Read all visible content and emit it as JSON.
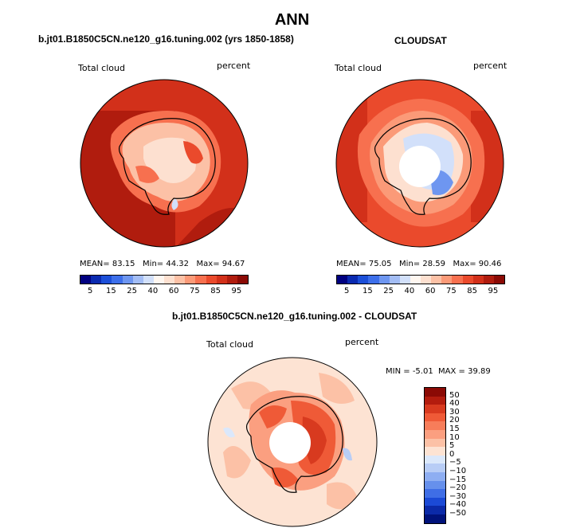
{
  "page_title": "ANN",
  "panels": [
    {
      "title": "b.jt01.B1850C5CN.ne120_g16.tuning.002 (yrs 1850-1858)",
      "field": "Total cloud",
      "units": "percent",
      "stats": {
        "mean_label": "MEAN=",
        "mean": "83.15",
        "min_label": "Min=",
        "min": "44.32",
        "max_label": "Max=",
        "max": "94.67"
      }
    },
    {
      "title": "CLOUDSAT",
      "field": "Total cloud",
      "units": "percent",
      "stats": {
        "mean_label": "MEAN=",
        "mean": "75.05",
        "min_label": "Min=",
        "min": "28.59",
        "max_label": "Max=",
        "max": "90.46"
      }
    },
    {
      "title": "b.jt01.B1850C5CN.ne120_g16.tuning.002 - CLOUDSAT",
      "field": "Total cloud",
      "units": "percent",
      "stats": {
        "min_label": "MIN =",
        "min": "-5.01",
        "max_label": "MAX =",
        "max": "39.89"
      }
    }
  ],
  "abs_colorbar": {
    "labels": [
      "5",
      "15",
      "25",
      "40",
      "60",
      "75",
      "85",
      "95"
    ],
    "colors": [
      "#000080",
      "#0a2ab0",
      "#1c4fd8",
      "#3d6fea",
      "#6e96f0",
      "#a3bdf5",
      "#d2e0fa",
      "#fff7f0",
      "#fde0d0",
      "#fcc1a6",
      "#fb9a78",
      "#f7704f",
      "#ea4a2c",
      "#d2301a",
      "#b01c0e",
      "#8b0a05"
    ]
  },
  "diff_colorbar": {
    "labels": [
      "50",
      "40",
      "30",
      "20",
      "15",
      "10",
      "5",
      "0",
      "−5",
      "−10",
      "−15",
      "−20",
      "−30",
      "−40",
      "−50"
    ],
    "colors": [
      "#8b0a05",
      "#b31c0e",
      "#d83a1f",
      "#ef5a37",
      "#f77d5a",
      "#fb9f80",
      "#fcc1a6",
      "#fde3d3",
      "#dbe8fb",
      "#b8cdf6",
      "#8eaef2",
      "#6690ec",
      "#3f6ee6",
      "#1b4ad6",
      "#0b2aa8",
      "#00127a"
    ]
  }
}
